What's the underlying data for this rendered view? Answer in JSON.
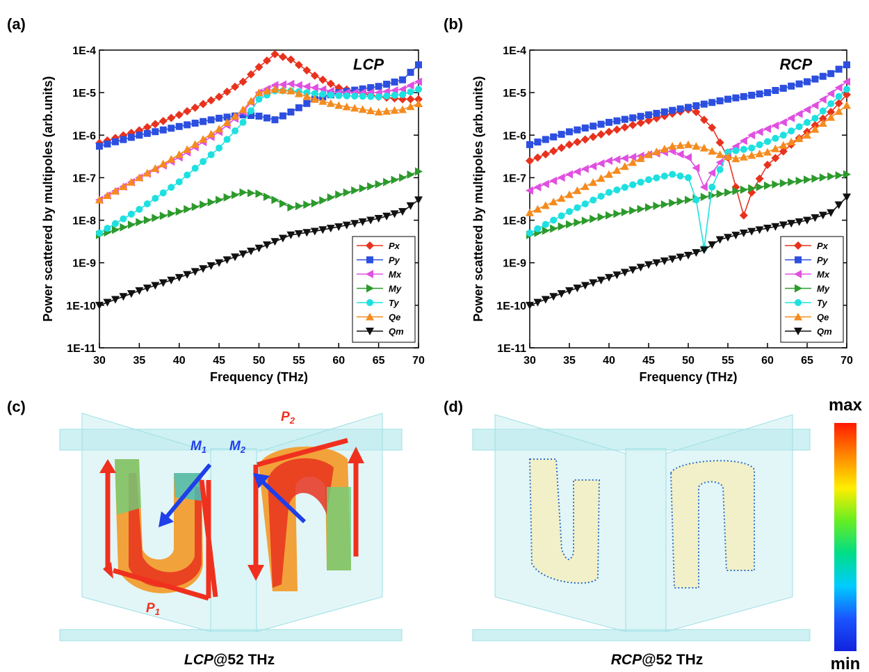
{
  "panels": {
    "a_label": "(a)",
    "b_label": "(b)",
    "c_label": "(c)",
    "d_label": "(d)",
    "c_caption_italic": "LCP",
    "c_caption_rest": "@52 THz",
    "d_caption_italic": "RCP",
    "d_caption_rest": "@52 THz",
    "c_annotations": {
      "M1": "M",
      "M1_sub": "1",
      "M2": "M",
      "M2_sub": "2",
      "P1": "P",
      "P1_sub": "1",
      "P2": "P",
      "P2_sub": "2"
    }
  },
  "colorbar": {
    "max_label": "max",
    "min_label": "min",
    "colors": [
      "#ff1a00",
      "#ff8800",
      "#ffee00",
      "#66ee22",
      "#00dd88",
      "#00ccff",
      "#1a55ff",
      "#1122dd"
    ]
  },
  "legend_entries": [
    "Px",
    "Py",
    "Mx",
    "My",
    "Ty",
    "Qe",
    "Qm"
  ],
  "chart_data": [
    {
      "type": "line",
      "panel": "(a)",
      "title": "LCP",
      "xlabel": "Frequency (THz)",
      "ylabel": "Power scattered by multipoles (arb.units)",
      "xlim": [
        30,
        70
      ],
      "ylim": [
        1e-11,
        0.0001
      ],
      "yscale": "log",
      "xticks": [
        "30",
        "35",
        "40",
        "45",
        "50",
        "55",
        "60",
        "65",
        "70"
      ],
      "yticks": [
        "1E-11",
        "1E-10",
        "1E-9",
        "1E-8",
        "1E-7",
        "1E-6",
        "1E-5",
        "1E-4"
      ],
      "legend_position": "bottom-right",
      "series": [
        {
          "name": "Px",
          "color": "#e8321e",
          "marker": "diamond",
          "points": [
            [
              30,
              6.5e-07
            ],
            [
              35,
              1.3e-06
            ],
            [
              40,
              3e-06
            ],
            [
              45,
              8e-06
            ],
            [
              48,
              1.8e-05
            ],
            [
              50,
              4e-05
            ],
            [
              52,
              8e-05
            ],
            [
              54,
              6e-05
            ],
            [
              57,
              2.5e-05
            ],
            [
              60,
              1.3e-05
            ],
            [
              65,
              8e-06
            ],
            [
              68,
              7e-06
            ],
            [
              70,
              7e-06
            ]
          ]
        },
        {
          "name": "Py",
          "color": "#2c4fe0",
          "marker": "square",
          "points": [
            [
              30,
              5.5e-07
            ],
            [
              35,
              1e-06
            ],
            [
              40,
              1.6e-06
            ],
            [
              45,
              2.5e-06
            ],
            [
              48,
              3e-06
            ],
            [
              50,
              2.8e-06
            ],
            [
              52,
              2.3e-06
            ],
            [
              54,
              3.5e-06
            ],
            [
              57,
              7e-06
            ],
            [
              60,
              1e-05
            ],
            [
              65,
              1.4e-05
            ],
            [
              68,
              2e-05
            ],
            [
              70,
              4.5e-05
            ]
          ]
        },
        {
          "name": "Mx",
          "color": "#e050e0",
          "marker": "triangle-left",
          "points": [
            [
              30,
              3e-08
            ],
            [
              35,
              1e-07
            ],
            [
              40,
              3e-07
            ],
            [
              45,
              1.2e-06
            ],
            [
              48,
              3.5e-06
            ],
            [
              50,
              1e-05
            ],
            [
              52,
              1.5e-05
            ],
            [
              54,
              1.6e-05
            ],
            [
              57,
              1.3e-05
            ],
            [
              60,
              1e-05
            ],
            [
              65,
              1e-05
            ],
            [
              68,
              1.2e-05
            ],
            [
              70,
              1.8e-05
            ]
          ]
        },
        {
          "name": "My",
          "color": "#2c9a2c",
          "marker": "triangle-right",
          "points": [
            [
              30,
              4.5e-09
            ],
            [
              35,
              9e-09
            ],
            [
              40,
              1.6e-08
            ],
            [
              45,
              3e-08
            ],
            [
              48,
              4.5e-08
            ],
            [
              50,
              4.2e-08
            ],
            [
              52,
              3e-08
            ],
            [
              54,
              2e-08
            ],
            [
              57,
              2.5e-08
            ],
            [
              60,
              4e-08
            ],
            [
              65,
              7e-08
            ],
            [
              68,
              1e-07
            ],
            [
              70,
              1.4e-07
            ]
          ]
        },
        {
          "name": "Ty",
          "color": "#1ee0e0",
          "marker": "circle",
          "points": [
            [
              30,
              5e-09
            ],
            [
              35,
              1.8e-08
            ],
            [
              40,
              8e-08
            ],
            [
              45,
              5e-07
            ],
            [
              48,
              2e-06
            ],
            [
              50,
              7e-06
            ],
            [
              52,
              1.1e-05
            ],
            [
              54,
              1.1e-05
            ],
            [
              57,
              9.5e-06
            ],
            [
              60,
              8.5e-06
            ],
            [
              65,
              8e-06
            ],
            [
              68,
              9e-06
            ],
            [
              70,
              1.2e-05
            ]
          ]
        },
        {
          "name": "Qe",
          "color": "#f58b1e",
          "marker": "triangle-up",
          "points": [
            [
              30,
              3e-08
            ],
            [
              35,
              1e-07
            ],
            [
              40,
              3.5e-07
            ],
            [
              45,
              1.4e-06
            ],
            [
              48,
              4e-06
            ],
            [
              50,
              1e-05
            ],
            [
              52,
              1.2e-05
            ],
            [
              54,
              1.1e-05
            ],
            [
              57,
              7e-06
            ],
            [
              60,
              5e-06
            ],
            [
              65,
              3.5e-06
            ],
            [
              68,
              4e-06
            ],
            [
              70,
              5.5e-06
            ]
          ]
        },
        {
          "name": "Qm",
          "color": "#111111",
          "marker": "triangle-down",
          "points": [
            [
              30,
              1e-10
            ],
            [
              35,
              2.2e-10
            ],
            [
              40,
              4.5e-10
            ],
            [
              45,
              1e-09
            ],
            [
              50,
              2.2e-09
            ],
            [
              54,
              4.5e-09
            ],
            [
              57,
              5.5e-09
            ],
            [
              60,
              7e-09
            ],
            [
              65,
              1.1e-08
            ],
            [
              68,
              1.6e-08
            ],
            [
              70,
              3e-08
            ]
          ]
        }
      ]
    },
    {
      "type": "line",
      "panel": "(b)",
      "title": "RCP",
      "xlabel": "Frequency (THz)",
      "ylabel": "Power scattered by multipoles (arb.units)",
      "xlim": [
        30,
        70
      ],
      "ylim": [
        1e-11,
        0.0001
      ],
      "yscale": "log",
      "xticks": [
        "30",
        "35",
        "40",
        "45",
        "50",
        "55",
        "60",
        "65",
        "70"
      ],
      "yticks": [
        "1E-11",
        "1E-10",
        "1E-9",
        "1E-8",
        "1E-7",
        "1E-6",
        "1E-5",
        "1E-4"
      ],
      "legend_position": "bottom-right",
      "series": [
        {
          "name": "Px",
          "color": "#e8321e",
          "marker": "diamond",
          "points": [
            [
              30,
              2.5e-07
            ],
            [
              35,
              6e-07
            ],
            [
              40,
              1.2e-06
            ],
            [
              45,
              2.2e-06
            ],
            [
              48,
              3.2e-06
            ],
            [
              50,
              4e-06
            ],
            [
              51,
              3.5e-06
            ],
            [
              53,
              1.5e-06
            ],
            [
              55,
              3e-07
            ],
            [
              56,
              6e-08
            ],
            [
              57,
              1.3e-08
            ],
            [
              58,
              4.5e-08
            ],
            [
              60,
              2e-07
            ],
            [
              63,
              6e-07
            ],
            [
              65,
              1.2e-06
            ],
            [
              68,
              3.5e-06
            ],
            [
              70,
              9e-06
            ]
          ]
        },
        {
          "name": "Py",
          "color": "#2c4fe0",
          "marker": "square",
          "points": [
            [
              30,
              6e-07
            ],
            [
              35,
              1.2e-06
            ],
            [
              40,
              2e-06
            ],
            [
              45,
              3e-06
            ],
            [
              50,
              4.5e-06
            ],
            [
              55,
              7e-06
            ],
            [
              60,
              1e-05
            ],
            [
              65,
              1.8e-05
            ],
            [
              68,
              2.8e-05
            ],
            [
              70,
              4.5e-05
            ]
          ]
        },
        {
          "name": "Mx",
          "color": "#e050e0",
          "marker": "triangle-left",
          "points": [
            [
              30,
              5e-08
            ],
            [
              35,
              1.2e-07
            ],
            [
              40,
              2.5e-07
            ],
            [
              45,
              3.5e-07
            ],
            [
              48,
              4.2e-07
            ],
            [
              50,
              3e-07
            ],
            [
              51,
              1.7e-07
            ],
            [
              52,
              6e-08
            ],
            [
              53,
              1.3e-07
            ],
            [
              55,
              4e-07
            ],
            [
              58,
              1e-06
            ],
            [
              62,
              2e-06
            ],
            [
              66,
              5e-06
            ],
            [
              70,
              1.8e-05
            ]
          ]
        },
        {
          "name": "My",
          "color": "#2c9a2c",
          "marker": "triangle-right",
          "points": [
            [
              30,
              4.5e-09
            ],
            [
              35,
              8e-09
            ],
            [
              40,
              1.3e-08
            ],
            [
              45,
              2e-08
            ],
            [
              50,
              3e-08
            ],
            [
              55,
              4.5e-08
            ],
            [
              60,
              6.5e-08
            ],
            [
              65,
              9e-08
            ],
            [
              70,
              1.2e-07
            ]
          ]
        },
        {
          "name": "Ty",
          "color": "#1ee0e0",
          "marker": "circle",
          "points": [
            [
              30,
              5e-09
            ],
            [
              35,
              1.6e-08
            ],
            [
              40,
              4.5e-08
            ],
            [
              45,
              9e-08
            ],
            [
              48,
              1.2e-07
            ],
            [
              50,
              1e-07
            ],
            [
              51,
              3e-08
            ],
            [
              52,
              2.2e-09
            ],
            [
              53,
              6e-08
            ],
            [
              55,
              4e-07
            ],
            [
              58,
              5e-07
            ],
            [
              62,
              1e-06
            ],
            [
              66,
              2.5e-06
            ],
            [
              70,
              1.2e-05
            ]
          ]
        },
        {
          "name": "Qe",
          "color": "#f58b1e",
          "marker": "triangle-up",
          "points": [
            [
              30,
              1.5e-08
            ],
            [
              35,
              4e-08
            ],
            [
              40,
              1.2e-07
            ],
            [
              45,
              3.5e-07
            ],
            [
              48,
              5.5e-07
            ],
            [
              50,
              6e-07
            ],
            [
              52,
              5e-07
            ],
            [
              54,
              3.5e-07
            ],
            [
              56,
              2.8e-07
            ],
            [
              60,
              4e-07
            ],
            [
              65,
              1e-06
            ],
            [
              70,
              5e-06
            ]
          ]
        },
        {
          "name": "Qm",
          "color": "#111111",
          "marker": "triangle-down",
          "points": [
            [
              30,
              1e-10
            ],
            [
              35,
              2.2e-10
            ],
            [
              40,
              4.5e-10
            ],
            [
              45,
              9e-10
            ],
            [
              50,
              1.5e-09
            ],
            [
              52,
              2e-09
            ],
            [
              54,
              3.5e-09
            ],
            [
              57,
              5e-09
            ],
            [
              60,
              6.5e-09
            ],
            [
              65,
              1e-08
            ],
            [
              68,
              1.5e-08
            ],
            [
              70,
              3.5e-08
            ]
          ]
        }
      ]
    }
  ]
}
